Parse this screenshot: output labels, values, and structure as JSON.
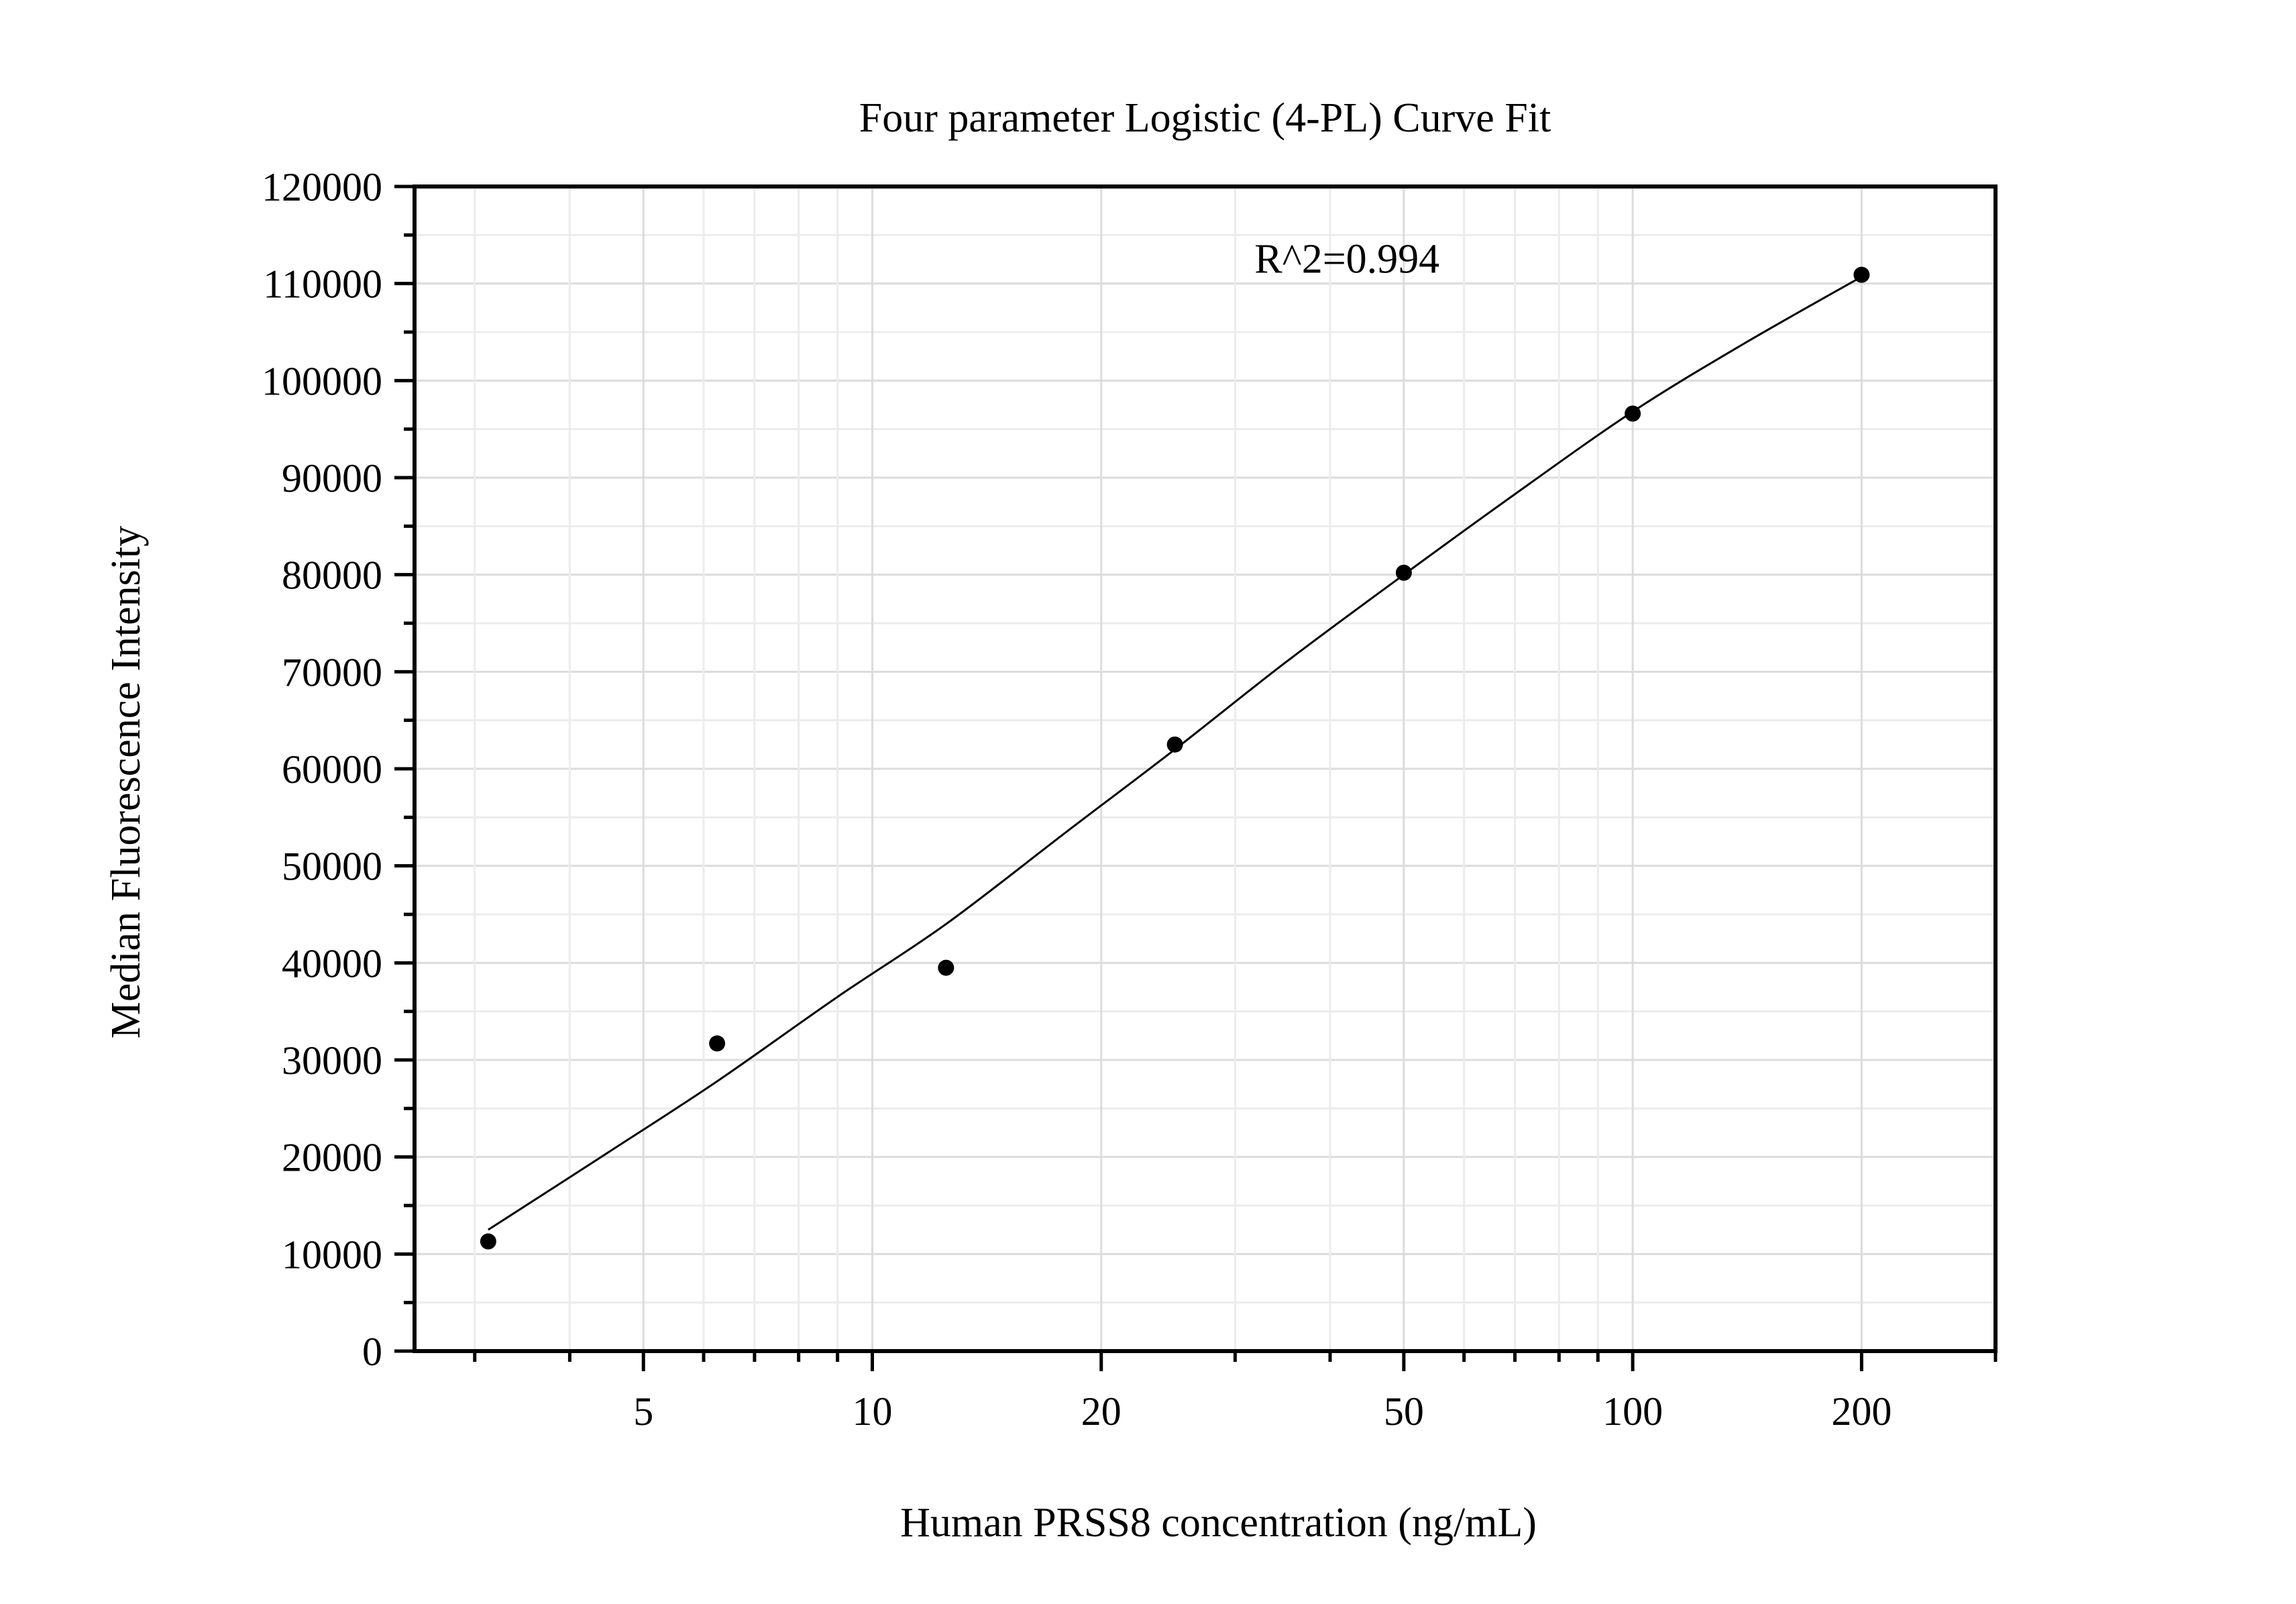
{
  "chart_data": {
    "type": "scatter",
    "title": "Four parameter Logistic (4-PL) Curve Fit",
    "xlabel": "Human PRSS8 concentration (ng/mL)",
    "ylabel": "Median Fluorescence Intensity",
    "x_scale": "log10",
    "xlim": [
      2.5,
      300
    ],
    "ylim": [
      0,
      120000
    ],
    "x_ticks": [
      5,
      10,
      20,
      50,
      100,
      200
    ],
    "x_tick_labels": [
      "5",
      "10",
      "20",
      "50",
      "100",
      "200"
    ],
    "y_ticks": [
      0,
      10000,
      20000,
      30000,
      40000,
      50000,
      60000,
      70000,
      80000,
      90000,
      100000,
      110000,
      120000
    ],
    "y_tick_labels": [
      "0",
      "10000",
      "20000",
      "30000",
      "40000",
      "50000",
      "60000",
      "70000",
      "80000",
      "90000",
      "100000",
      "110000",
      "120000"
    ],
    "grid": true,
    "points": [
      {
        "x": 3.125,
        "y": 11300
      },
      {
        "x": 6.25,
        "y": 31700
      },
      {
        "x": 12.5,
        "y": 39500
      },
      {
        "x": 25,
        "y": 62500
      },
      {
        "x": 50,
        "y": 80200
      },
      {
        "x": 100,
        "y": 96600
      },
      {
        "x": 200,
        "y": 110900
      }
    ],
    "fit_curve": [
      {
        "x": 3.125,
        "y": 12500
      },
      {
        "x": 4.5,
        "y": 20500
      },
      {
        "x": 6.25,
        "y": 27800
      },
      {
        "x": 9,
        "y": 36500
      },
      {
        "x": 12.5,
        "y": 44000
      },
      {
        "x": 18,
        "y": 53500
      },
      {
        "x": 25,
        "y": 62000
      },
      {
        "x": 35,
        "y": 71000
      },
      {
        "x": 50,
        "y": 80000
      },
      {
        "x": 70,
        "y": 88300
      },
      {
        "x": 100,
        "y": 96800
      },
      {
        "x": 140,
        "y": 103800
      },
      {
        "x": 200,
        "y": 110700
      }
    ],
    "annotation": "R^2=0.994",
    "annotation_pos": {
      "x": 90,
      "y": 112500
    }
  }
}
